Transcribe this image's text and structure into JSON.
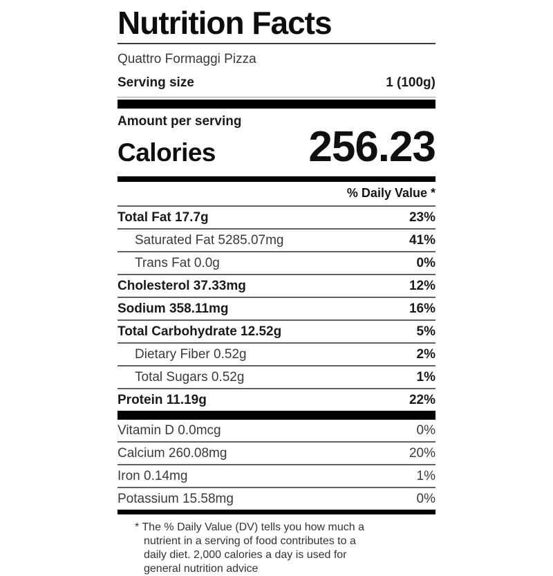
{
  "label": {
    "title": "Nutrition Facts",
    "product_name": "Quattro Formaggi Pizza",
    "serving_size_label": "Serving size",
    "serving_size_value": "1 (100g)",
    "amount_per_serving_label": "Amount per serving",
    "calories_label": "Calories",
    "calories_value": "256.23",
    "daily_value_header": "% Daily Value *",
    "nutrients": [
      {
        "name": "Total Fat 17.7g",
        "dv": "23%",
        "style": "main"
      },
      {
        "name": "Saturated Fat 5285.07mg",
        "dv": "41%",
        "style": "sub"
      },
      {
        "name": "Trans Fat 0.0g",
        "dv": "0%",
        "style": "sub"
      },
      {
        "name": "Cholesterol 37.33mg",
        "dv": "12%",
        "style": "main"
      },
      {
        "name": "Sodium 358.11mg",
        "dv": "16%",
        "style": "main"
      },
      {
        "name": "Total Carbohydrate 12.52g",
        "dv": "5%",
        "style": "main"
      },
      {
        "name": "Dietary Fiber 0.52g",
        "dv": "2%",
        "style": "sub"
      },
      {
        "name": "Total Sugars 0.52g",
        "dv": "1%",
        "style": "sub"
      },
      {
        "name": "Protein 11.19g",
        "dv": "22%",
        "style": "main"
      }
    ],
    "micronutrients": [
      {
        "name": "Vitamin D 0.0mcg",
        "dv": "0%"
      },
      {
        "name": "Calcium 260.08mg",
        "dv": "20%"
      },
      {
        "name": "Iron 0.14mg",
        "dv": "1%"
      },
      {
        "name": "Potassium 15.58mg",
        "dv": "0%"
      }
    ],
    "footnote_marker": "*",
    "footnote_text": "The % Daily Value (DV) tells you how much a nutrient in a serving of food contributes to a daily diet. 2,000 calories a day is used for general nutrition advice"
  },
  "colors": {
    "bar": "#000000",
    "bold_text": "#111111",
    "regular_text": "#3a3a3a",
    "separator": "#5f5f5f",
    "background": "#ffffff"
  }
}
